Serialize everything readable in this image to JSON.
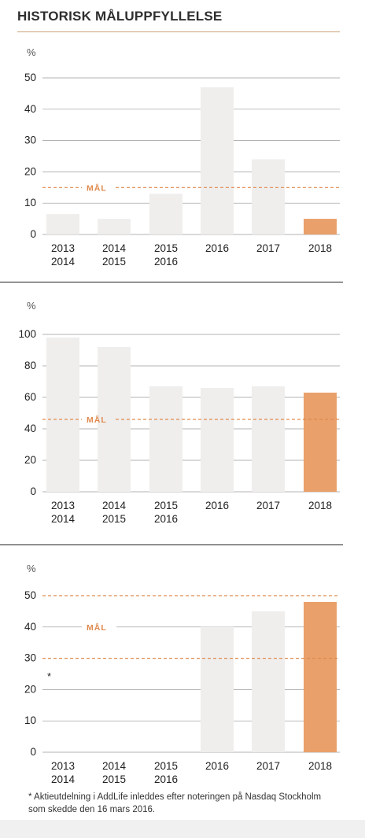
{
  "title": "HISTORISK MÅLUPPFYLLELSE",
  "footnote": "* Aktieutdelning i AddLife inleddes efter noteringen på Nasdaq Stockholm som skedde den 16 mars 2016.",
  "colors": {
    "bar": "#efeeed",
    "highlight": "#e9a06a",
    "target": "#e08a4e",
    "grid": "#9a9a9a"
  },
  "chart_data": [
    {
      "type": "bar",
      "unit_label": "%",
      "categories": [
        [
          "2013",
          "2014"
        ],
        [
          "2014",
          "2015"
        ],
        [
          "2015",
          "2016"
        ],
        [
          "2016"
        ],
        [
          "2017"
        ],
        [
          "2018"
        ]
      ],
      "values": [
        6.5,
        5,
        13,
        47,
        24,
        5
      ],
      "highlight_index": 5,
      "ylim": [
        0,
        50
      ],
      "yticks": [
        0,
        10,
        20,
        30,
        40,
        50
      ],
      "targets": [
        15
      ],
      "target_label": "MÅL",
      "target_label_value": 15
    },
    {
      "type": "bar",
      "unit_label": "%",
      "categories": [
        [
          "2013",
          "2014"
        ],
        [
          "2014",
          "2015"
        ],
        [
          "2015",
          "2016"
        ],
        [
          "2016"
        ],
        [
          "2017"
        ],
        [
          "2018"
        ]
      ],
      "values": [
        98,
        92,
        67,
        66,
        67,
        63
      ],
      "highlight_index": 5,
      "ylim": [
        0,
        100
      ],
      "yticks": [
        0,
        20,
        40,
        60,
        80,
        100
      ],
      "targets": [
        46
      ],
      "target_label": "MÅL",
      "target_label_value": 46
    },
    {
      "type": "bar",
      "unit_label": "%",
      "categories": [
        [
          "2013",
          "2014"
        ],
        [
          "2014",
          "2015"
        ],
        [
          "2015",
          "2016"
        ],
        [
          "2016"
        ],
        [
          "2017"
        ],
        [
          "2018"
        ]
      ],
      "values": [
        null,
        null,
        null,
        40,
        45,
        48
      ],
      "highlight_index": 5,
      "ylim": [
        0,
        50
      ],
      "yticks": [
        0,
        10,
        20,
        30,
        40,
        50
      ],
      "targets": [
        30,
        50
      ],
      "target_label": "MÅL",
      "target_label_value": 40,
      "note_marker": "*"
    }
  ]
}
